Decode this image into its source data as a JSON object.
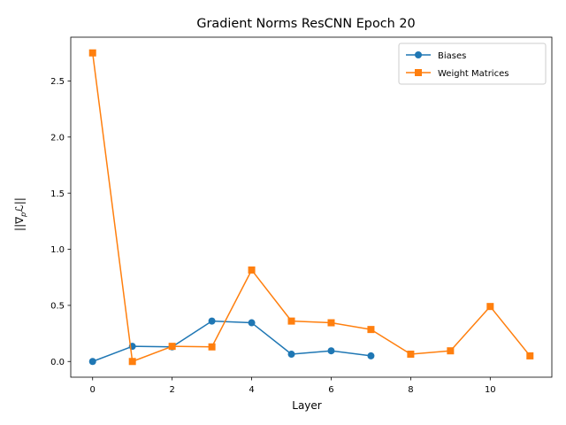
{
  "chart_data": {
    "type": "line",
    "title": "Gradient Norms ResCNN Epoch 20",
    "xlabel": "Layer",
    "ylabel": "||∇",
    "ylabel_sub": "p",
    "ylabel_end": "ℒ||",
    "xlim": [
      -0.55,
      11.55
    ],
    "ylim": [
      -0.14,
      2.89
    ],
    "xticks": [
      0,
      2,
      4,
      6,
      8,
      10
    ],
    "yticks": [
      0.0,
      0.5,
      1.0,
      1.5,
      2.0,
      2.5
    ],
    "ytick_labels": [
      "0.0",
      "0.5",
      "1.0",
      "1.5",
      "2.0",
      "2.5"
    ],
    "legend_position": "upper-right",
    "series": [
      {
        "name": "Biases",
        "marker": "circle",
        "color": "#1f77b4",
        "x": [
          0,
          1,
          2,
          3,
          4,
          5,
          6,
          7
        ],
        "y": [
          0.0,
          0.135,
          0.13,
          0.36,
          0.345,
          0.065,
          0.095,
          0.05
        ]
      },
      {
        "name": "Weight Matrices",
        "marker": "square",
        "color": "#ff7f0e",
        "x": [
          0,
          1,
          2,
          3,
          4,
          5,
          6,
          7,
          8,
          9,
          10,
          11
        ],
        "y": [
          2.75,
          0.0,
          0.135,
          0.13,
          0.815,
          0.36,
          0.345,
          0.285,
          0.065,
          0.095,
          0.49,
          0.05
        ]
      }
    ]
  }
}
